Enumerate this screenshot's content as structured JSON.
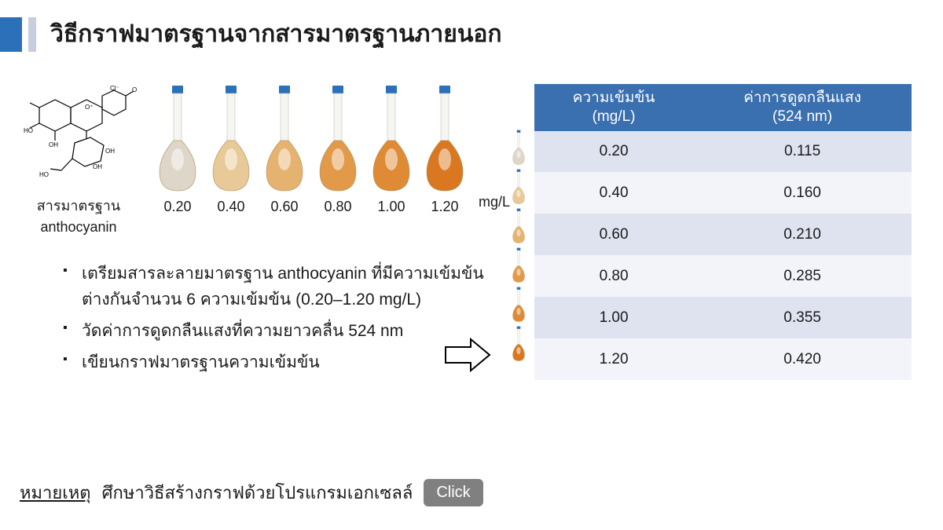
{
  "colors": {
    "accent1": "#2b70b8",
    "accent2": "#c6cee0",
    "table_header_bg": "#3a6fb0",
    "row_odd": "#dfe3ef",
    "row_even": "#f3f4f9",
    "flask_cap": "#2b70b8",
    "btn_bg": "#808080",
    "text": "#1a1a1a"
  },
  "title": "วิธีกราฟมาตรฐานจากสารมาตรฐานภายนอก",
  "structure_label_1": "สารมาตรฐาน",
  "structure_label_2": "anthocyanin",
  "flasks": {
    "concentrations": [
      "0.20",
      "0.40",
      "0.60",
      "0.80",
      "1.00",
      "1.20"
    ],
    "fill_colors": [
      "#ded6c8",
      "#e8c998",
      "#e6b270",
      "#e29a4a",
      "#df8a34",
      "#d97820"
    ],
    "unit": "mg/L"
  },
  "bullets": [
    "เตรียมสารละลายมาตรฐาน anthocyanin ที่มีความเข้มข้นต่างกันจำนวน 6 ความเข้มข้น (0.20–1.20 mg/L)",
    "วัดค่าการดูดกลืนแสงที่ความยาวคลื่น 524 nm",
    "เขียนกราฟมาตรฐานความเข้มข้น"
  ],
  "table": {
    "headers": [
      "ความเข้มข้น\n(mg/L)",
      "ค่าการดูดกลืนแสง\n(524 nm)"
    ],
    "rows": [
      [
        "0.20",
        "0.115"
      ],
      [
        "0.40",
        "0.160"
      ],
      [
        "0.60",
        "0.210"
      ],
      [
        "0.80",
        "0.285"
      ],
      [
        "1.00",
        "0.355"
      ],
      [
        "1.20",
        "0.420"
      ]
    ]
  },
  "footer": {
    "label": "หมายเหตุ",
    "text": "ศึกษาวิธีสร้างกราฟด้วยโปรแกรมเอกเซลล์",
    "button": "Click"
  }
}
